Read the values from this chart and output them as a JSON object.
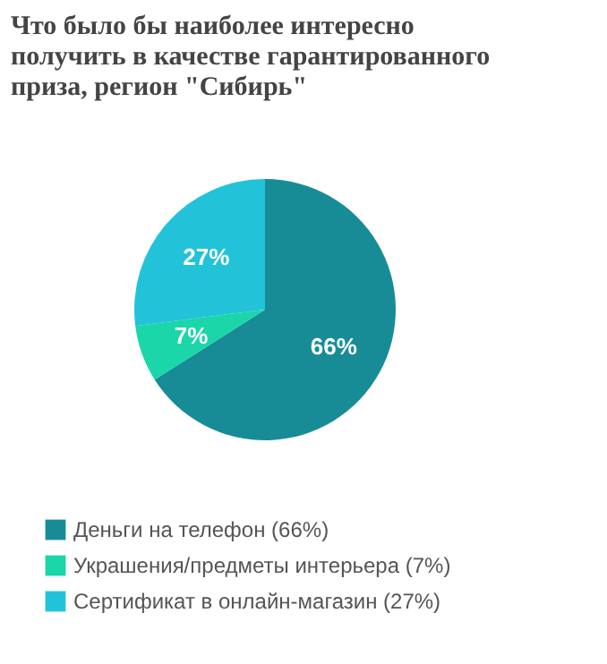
{
  "chart_data": {
    "type": "pie",
    "title": "Что было бы наиболее интересно получить в качестве гарантированного приза, регион \"Сибирь\"",
    "categories": [
      "Деньги на телефон (66%)",
      "Украшения/предметы интерьера (7%)",
      "Сертификат в онлайн-магазин (27%)"
    ],
    "values": [
      66,
      7,
      27
    ],
    "value_labels": [
      "66%",
      "7%",
      "27%"
    ],
    "colors": [
      "#178c96",
      "#1ad6a8",
      "#22c3d9"
    ],
    "legend": "bottom"
  }
}
